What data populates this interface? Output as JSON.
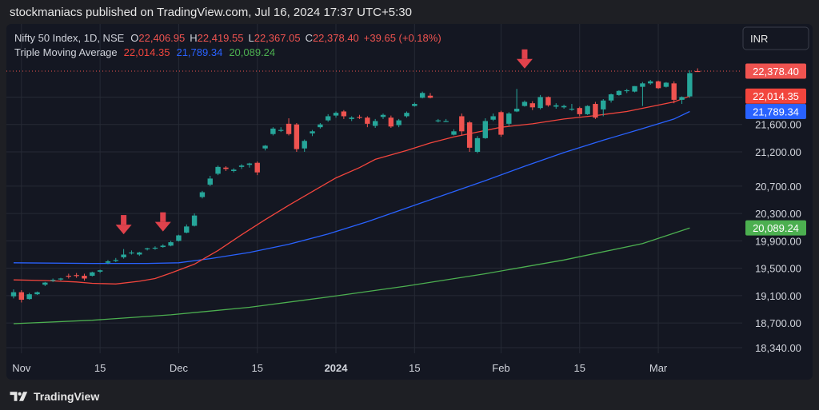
{
  "header": {
    "text": "stockmaniacs published on TradingView.com, Jul 16, 2024 17:37 UTC+5:30"
  },
  "legend": {
    "symbol": "Nifty 50 Index, 1D, NSE",
    "o_label": "O",
    "o_value": "22,406.95",
    "h_label": "H",
    "h_value": "22,419.55",
    "l_label": "L",
    "l_value": "22,367.05",
    "c_label": "C",
    "c_value": "22,378.40",
    "change": "+39.65 (+0.18%)",
    "indicator": "Triple Moving Average",
    "ma1": "22,014.35",
    "ma2": "21,789.34",
    "ma3": "20,089.24"
  },
  "currency_button": "INR",
  "price_labels": {
    "last": "22,378.40",
    "ma1": "22,014.35",
    "ma2": "21,789.34",
    "ma3": "20,089.24"
  },
  "footer": {
    "brand": "TradingView"
  },
  "colors": {
    "up": "#26a69a",
    "down": "#ef5350",
    "ma1": "#f2453d",
    "ma2": "#2962ff",
    "ma3": "#4caf50",
    "arrow": "#e0424c",
    "grid": "#262a35",
    "axis_text": "#d1d4dc"
  },
  "chart_data": {
    "type": "candlestick",
    "y_ticks": [
      {
        "value": 22000,
        "label": "22,000.00"
      },
      {
        "value": 21600,
        "label": "21,600.00"
      },
      {
        "value": 21200,
        "label": "21,200.00"
      },
      {
        "value": 20700,
        "label": "20,700.00"
      },
      {
        "value": 20300,
        "label": "20,300.00"
      },
      {
        "value": 19900,
        "label": "19,900.00"
      },
      {
        "value": 19500,
        "label": "19,500.00"
      },
      {
        "value": 19100,
        "label": "19,100.00"
      },
      {
        "value": 18700,
        "label": "18,700.00"
      },
      {
        "value": 18340,
        "label": "18,340.00"
      }
    ],
    "x_ticks": [
      {
        "index": 1,
        "label": "Nov",
        "bold": false
      },
      {
        "index": 11,
        "label": "15",
        "bold": false
      },
      {
        "index": 21,
        "label": "Dec",
        "bold": false
      },
      {
        "index": 31,
        "label": "15",
        "bold": false
      },
      {
        "index": 41,
        "label": "2024",
        "bold": true
      },
      {
        "index": 51,
        "label": "15",
        "bold": false
      },
      {
        "index": 62,
        "label": "Feb",
        "bold": false
      },
      {
        "index": 72,
        "label": "15",
        "bold": false
      },
      {
        "index": 82,
        "label": "Mar",
        "bold": false
      }
    ],
    "candles": [
      [
        19090,
        19190,
        19060,
        19150
      ],
      [
        19150,
        19180,
        19000,
        19040
      ],
      [
        19050,
        19140,
        19040,
        19120
      ],
      [
        19120,
        19160,
        19110,
        19150
      ],
      [
        19260,
        19300,
        19240,
        19290
      ],
      [
        19320,
        19350,
        19300,
        19330
      ],
      [
        19340,
        19360,
        19320,
        19350
      ],
      [
        19390,
        19420,
        19350,
        19380
      ],
      [
        19400,
        19430,
        19360,
        19390
      ],
      [
        19390,
        19420,
        19320,
        19350
      ],
      [
        19390,
        19450,
        19380,
        19440
      ],
      [
        19450,
        19480,
        19430,
        19470
      ],
      [
        19580,
        19620,
        19560,
        19600
      ],
      [
        19610,
        19650,
        19590,
        19620
      ],
      [
        19660,
        19780,
        19640,
        19700
      ],
      [
        19720,
        19760,
        19700,
        19730
      ],
      [
        19700,
        19740,
        19680,
        19730
      ],
      [
        19780,
        19800,
        19760,
        19790
      ],
      [
        19790,
        19820,
        19770,
        19800
      ],
      [
        19810,
        19850,
        19800,
        19830
      ],
      [
        19830,
        19900,
        19820,
        19880
      ],
      [
        19900,
        19990,
        19890,
        19980
      ],
      [
        20020,
        20140,
        20010,
        20110
      ],
      [
        20120,
        20300,
        20110,
        20270
      ],
      [
        20540,
        20630,
        20520,
        20610
      ],
      [
        20720,
        20850,
        20700,
        20810
      ],
      [
        20880,
        21000,
        20860,
        20980
      ],
      [
        20970,
        20990,
        20920,
        20950
      ],
      [
        20920,
        20960,
        20900,
        20940
      ],
      [
        20980,
        21020,
        20950,
        21000
      ],
      [
        21010,
        21040,
        20970,
        21030
      ],
      [
        21040,
        21060,
        20860,
        20900
      ],
      [
        21250,
        21300,
        21220,
        21290
      ],
      [
        21460,
        21560,
        21440,
        21540
      ],
      [
        21510,
        21560,
        21490,
        21520
      ],
      [
        21610,
        21690,
        21440,
        21460
      ],
      [
        21600,
        21620,
        21200,
        21240
      ],
      [
        21250,
        21380,
        21200,
        21360
      ],
      [
        21470,
        21520,
        21430,
        21500
      ],
      [
        21560,
        21620,
        21540,
        21600
      ],
      [
        21660,
        21750,
        21640,
        21720
      ],
      [
        21730,
        21790,
        21700,
        21770
      ],
      [
        21790,
        21810,
        21680,
        21720
      ],
      [
        21680,
        21720,
        21650,
        21700
      ],
      [
        21710,
        21740,
        21680,
        21700
      ],
      [
        21700,
        21720,
        21560,
        21610
      ],
      [
        21580,
        21680,
        21550,
        21650
      ],
      [
        21710,
        21760,
        21680,
        21740
      ],
      [
        21700,
        21730,
        21550,
        21570
      ],
      [
        21590,
        21680,
        21560,
        21660
      ],
      [
        21720,
        21790,
        21700,
        21770
      ],
      [
        21870,
        21920,
        21860,
        21900
      ],
      [
        21990,
        22080,
        21980,
        22060
      ],
      [
        22020,
        22060,
        21980,
        21990
      ],
      [
        21650,
        21680,
        21630,
        21660
      ],
      [
        21650,
        21680,
        21640,
        21650
      ],
      [
        21450,
        21530,
        21440,
        21500
      ],
      [
        21720,
        21760,
        21440,
        21500
      ],
      [
        21630,
        21650,
        21200,
        21260
      ],
      [
        21200,
        21430,
        21180,
        21400
      ],
      [
        21400,
        21690,
        21390,
        21650
      ],
      [
        21670,
        21760,
        21650,
        21720
      ],
      [
        21780,
        21800,
        21420,
        21450
      ],
      [
        21610,
        21780,
        21580,
        21760
      ],
      [
        21790,
        22120,
        21780,
        21830
      ],
      [
        21870,
        21950,
        21860,
        21930
      ],
      [
        21910,
        21940,
        21810,
        21850
      ],
      [
        21840,
        22030,
        21820,
        22000
      ],
      [
        22000,
        22010,
        21860,
        21880
      ],
      [
        21860,
        21910,
        21830,
        21880
      ],
      [
        21850,
        21890,
        21830,
        21870
      ],
      [
        21820,
        21900,
        21800,
        21830
      ],
      [
        21840,
        21860,
        21720,
        21750
      ],
      [
        21750,
        21880,
        21740,
        21870
      ],
      [
        21900,
        21930,
        21680,
        21700
      ],
      [
        21820,
        21970,
        21720,
        21950
      ],
      [
        21950,
        22050,
        21920,
        22040
      ],
      [
        22030,
        22100,
        22020,
        22090
      ],
      [
        22090,
        22120,
        22060,
        22100
      ],
      [
        22080,
        22160,
        22070,
        22160
      ],
      [
        22150,
        22220,
        21870,
        22200
      ],
      [
        22200,
        22250,
        22180,
        22230
      ],
      [
        22230,
        22240,
        22120,
        22130
      ],
      [
        22150,
        22220,
        22140,
        22210
      ],
      [
        22200,
        22230,
        21910,
        21960
      ],
      [
        21960,
        22010,
        21900,
        22000
      ],
      [
        22010,
        22390,
        21990,
        22350
      ],
      [
        22380,
        22420,
        22367,
        22378
      ]
    ],
    "ma1": [
      [
        0,
        19330
      ],
      [
        4,
        19320
      ],
      [
        8,
        19300
      ],
      [
        10,
        19280
      ],
      [
        13,
        19270
      ],
      [
        16,
        19310
      ],
      [
        18,
        19350
      ],
      [
        20,
        19430
      ],
      [
        23,
        19560
      ],
      [
        26,
        19760
      ],
      [
        29,
        19990
      ],
      [
        32,
        20210
      ],
      [
        35,
        20420
      ],
      [
        38,
        20620
      ],
      [
        41,
        20820
      ],
      [
        44,
        20970
      ],
      [
        46,
        21090
      ],
      [
        50,
        21220
      ],
      [
        53,
        21330
      ],
      [
        56,
        21420
      ],
      [
        59,
        21490
      ],
      [
        62,
        21560
      ],
      [
        66,
        21610
      ],
      [
        70,
        21680
      ],
      [
        74,
        21730
      ],
      [
        78,
        21790
      ],
      [
        81,
        21860
      ],
      [
        84,
        21930
      ],
      [
        86,
        22014
      ]
    ],
    "ma2": [
      [
        0,
        19580
      ],
      [
        10,
        19570
      ],
      [
        17,
        19570
      ],
      [
        21,
        19580
      ],
      [
        25,
        19640
      ],
      [
        30,
        19730
      ],
      [
        35,
        19850
      ],
      [
        40,
        20000
      ],
      [
        45,
        20180
      ],
      [
        50,
        20380
      ],
      [
        55,
        20580
      ],
      [
        60,
        20780
      ],
      [
        65,
        20990
      ],
      [
        70,
        21190
      ],
      [
        75,
        21370
      ],
      [
        80,
        21540
      ],
      [
        84,
        21680
      ],
      [
        86,
        21789
      ]
    ],
    "ma3": [
      [
        0,
        18690
      ],
      [
        10,
        18740
      ],
      [
        20,
        18820
      ],
      [
        30,
        18930
      ],
      [
        40,
        19080
      ],
      [
        50,
        19240
      ],
      [
        60,
        19420
      ],
      [
        70,
        19620
      ],
      [
        80,
        19860
      ],
      [
        86,
        20089
      ]
    ],
    "arrows": [
      {
        "index": 14,
        "price": 19950
      },
      {
        "index": 19,
        "price": 19990
      },
      {
        "index": 65,
        "price": 22370
      }
    ],
    "last_price": 22378.4,
    "ylim": [
      18300,
      22700
    ]
  }
}
